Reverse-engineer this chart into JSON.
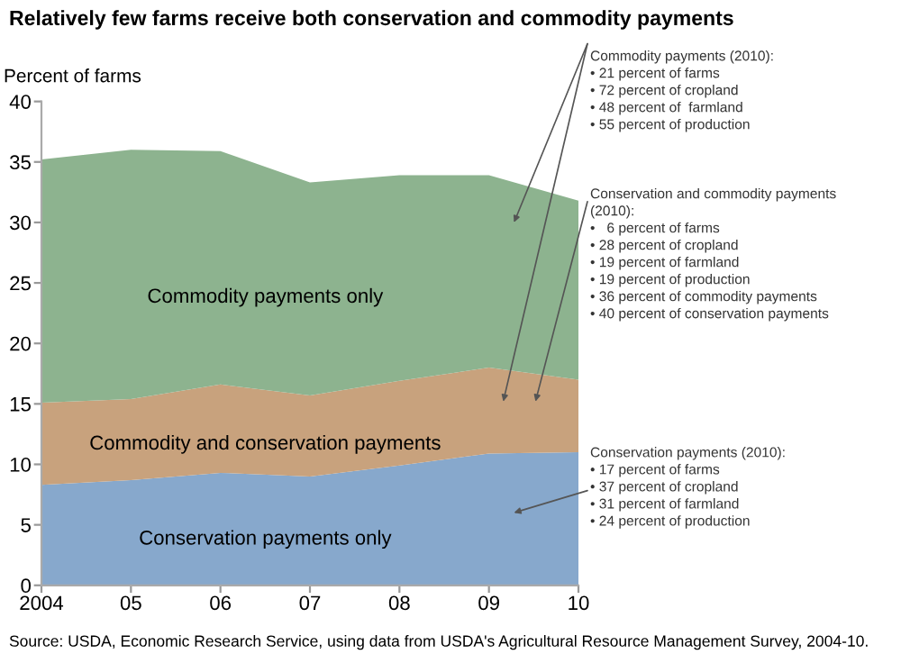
{
  "chart_data": {
    "type": "area",
    "stacked": true,
    "title": "Relatively few farms receive both conservation and commodity payments",
    "ylabel": "Percent of farms",
    "categories": [
      "2004",
      "05",
      "06",
      "07",
      "08",
      "09",
      "10"
    ],
    "series": [
      {
        "name": "Conservation payments only",
        "color": "#87a8cc",
        "values": [
          8.3,
          8.7,
          9.3,
          9.0,
          9.9,
          10.9,
          11.0
        ]
      },
      {
        "name": "Commodity and conservation payments",
        "color": "#c8a27d",
        "values": [
          6.8,
          6.7,
          7.3,
          6.7,
          7.0,
          7.1,
          6.0
        ]
      },
      {
        "name": "Commodity payments only",
        "color": "#8db38f",
        "values": [
          20.1,
          20.6,
          19.3,
          17.6,
          17.0,
          15.9,
          14.8
        ]
      }
    ],
    "ylim": [
      0,
      40
    ],
    "yticks": [
      0,
      5,
      10,
      15,
      20,
      25,
      30,
      35,
      40
    ],
    "grid": false,
    "legend": false,
    "annotations": [
      "Commodity payments (2010):\n• 21 percent of farms\n• 72 percent of cropland\n• 48 percent of  farmland\n• 55 percent of production",
      "Conservation and commodity payments\n(2010):\n•   6 percent of farms\n• 28 percent of cropland\n• 19 percent of farmland\n• 19 percent of production\n• 36 percent of commodity payments\n• 40 percent of conservation payments",
      "Conservation payments (2010):\n• 17 percent of farms\n• 37 percent of cropland\n• 31 percent of farmland\n• 24 percent of production",
      "Source: USDA, Economic Research Service, using data from USDA's Agricultural Resource Management Survey, 2004-10."
    ]
  }
}
